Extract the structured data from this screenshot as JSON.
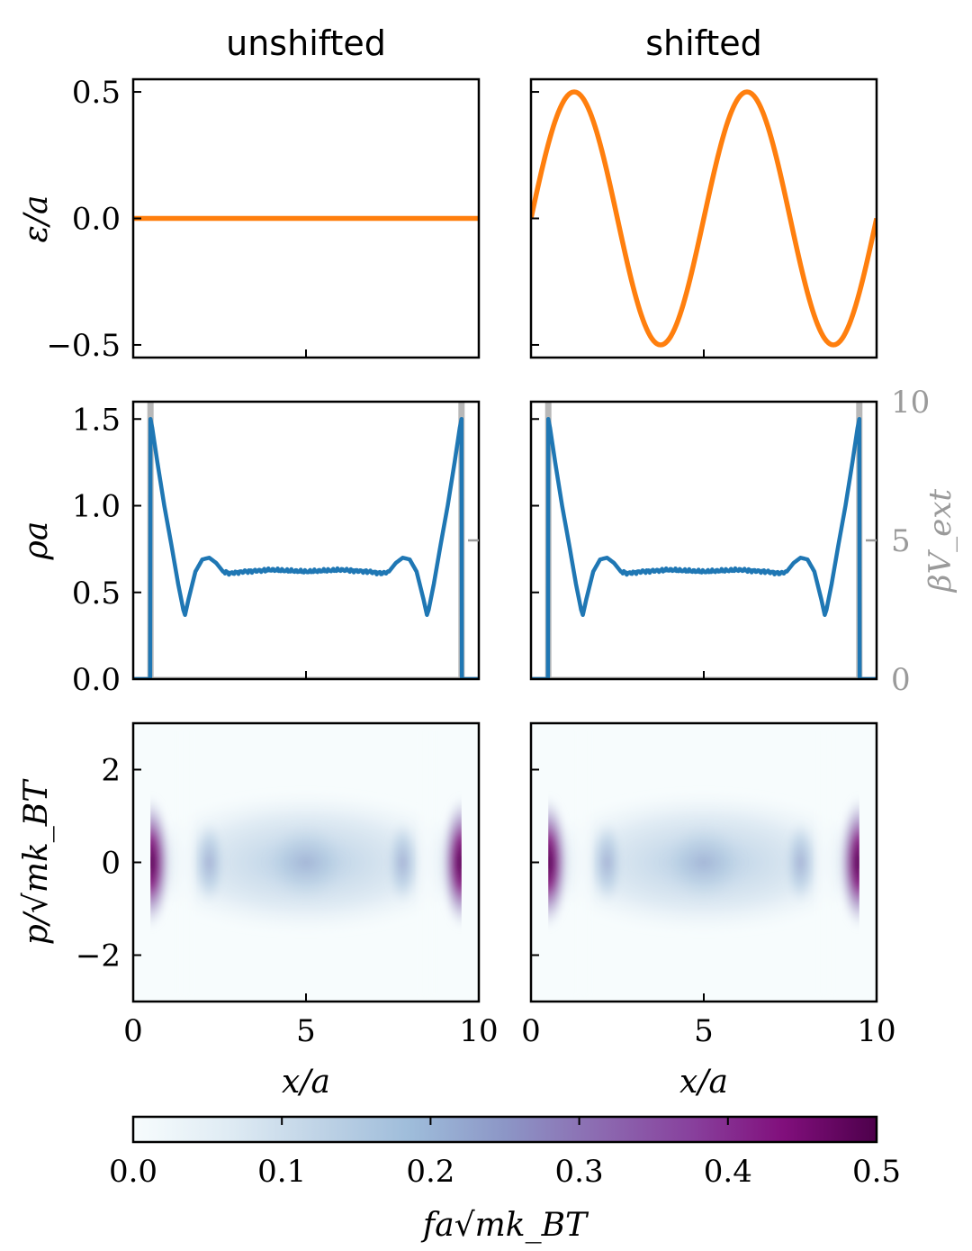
{
  "chart_data": [
    {
      "id": "eps_unshifted",
      "type": "line",
      "title": "unshifted",
      "ylabel": "ε/a",
      "xlim": [
        0,
        10
      ],
      "ylim": [
        -0.55,
        0.55
      ],
      "yticks": [
        0.5,
        0.0,
        -0.5
      ],
      "ytick_labels": [
        "0.5",
        "0.0",
        "−0.5"
      ],
      "series": [
        {
          "x": [
            0,
            2,
            4,
            6,
            8,
            10
          ],
          "y": [
            0,
            0,
            0,
            0,
            0,
            0
          ],
          "color": "#ff7f0e"
        }
      ]
    },
    {
      "id": "eps_shifted",
      "type": "line",
      "title": "shifted",
      "xlim": [
        0,
        10
      ],
      "ylim": [
        -0.55,
        0.55
      ],
      "series": [
        {
          "function": "0.5*sin(2*pi*x/5)",
          "x": [
            0,
            1.25,
            2.5,
            3.75,
            5,
            6.25,
            7.5,
            8.75,
            10
          ],
          "y": [
            0,
            0.5,
            0,
            -0.5,
            0,
            0.5,
            0,
            -0.5,
            0
          ],
          "color": "#ff7f0e"
        }
      ]
    },
    {
      "id": "rho_unshifted",
      "type": "line",
      "ylabel": "ρa",
      "xlim": [
        0,
        10
      ],
      "ylim": [
        0,
        1.6
      ],
      "yticks": [
        0.0,
        0.5,
        1.0,
        1.5
      ],
      "ytick_labels": [
        "0.0",
        "0.5",
        "1.0",
        "1.5"
      ],
      "series": [
        {
          "name": "ρa",
          "color": "#1f77b4",
          "x": [
            0.0,
            0.49,
            0.5,
            0.55,
            0.7,
            0.9,
            1.1,
            1.3,
            1.45,
            1.5,
            1.6,
            1.8,
            2.0,
            2.2,
            2.4,
            2.6,
            2.8,
            3.2,
            4,
            5,
            6,
            6.8,
            7.2,
            7.4,
            7.6,
            7.8,
            8.0,
            8.2,
            8.4,
            8.5,
            8.55,
            8.7,
            8.9,
            9.1,
            9.3,
            9.45,
            9.5,
            9.51,
            10.0
          ],
          "y": [
            0.0,
            0.0,
            1.5,
            1.45,
            1.25,
            1.0,
            0.78,
            0.55,
            0.4,
            0.37,
            0.46,
            0.62,
            0.69,
            0.7,
            0.67,
            0.62,
            0.61,
            0.62,
            0.63,
            0.62,
            0.63,
            0.62,
            0.61,
            0.62,
            0.67,
            0.7,
            0.69,
            0.62,
            0.46,
            0.37,
            0.4,
            0.55,
            0.78,
            1.0,
            1.25,
            1.45,
            1.5,
            0.0,
            0.0
          ]
        },
        {
          "name": "βV_ext",
          "axis": "right",
          "color": "#b8b8b8",
          "x": [
            0.5,
            9.5
          ],
          "y": [
            10,
            10
          ]
        }
      ]
    },
    {
      "id": "rho_shifted",
      "type": "line",
      "xlim": [
        0,
        10
      ],
      "ylim": [
        0,
        1.6
      ],
      "y2label": "βV_ext",
      "y2lim": [
        0,
        10
      ],
      "y2ticks": [
        0,
        5,
        10
      ],
      "y2tick_labels": [
        "0",
        "5",
        "10"
      ],
      "series": [
        {
          "name": "ρa",
          "color": "#1f77b4",
          "x": [
            0.0,
            0.49,
            0.5,
            0.55,
            0.7,
            0.9,
            1.1,
            1.3,
            1.45,
            1.5,
            1.6,
            1.8,
            2.0,
            2.2,
            2.4,
            2.6,
            2.8,
            3.2,
            4,
            5,
            6,
            6.8,
            7.2,
            7.4,
            7.6,
            7.8,
            8.0,
            8.2,
            8.4,
            8.5,
            8.55,
            8.7,
            8.9,
            9.1,
            9.3,
            9.45,
            9.5,
            9.51,
            10.0
          ],
          "y": [
            0.0,
            0.0,
            1.5,
            1.45,
            1.25,
            1.0,
            0.78,
            0.55,
            0.4,
            0.37,
            0.46,
            0.62,
            0.69,
            0.7,
            0.67,
            0.62,
            0.61,
            0.62,
            0.63,
            0.62,
            0.63,
            0.62,
            0.61,
            0.62,
            0.67,
            0.7,
            0.69,
            0.62,
            0.46,
            0.37,
            0.4,
            0.55,
            0.78,
            1.0,
            1.25,
            1.45,
            1.5,
            0.0,
            0.0
          ]
        },
        {
          "name": "βV_ext",
          "axis": "right",
          "color": "#b8b8b8",
          "x": [
            0.5,
            9.5
          ],
          "y": [
            10,
            10
          ]
        }
      ]
    },
    {
      "id": "f_unshifted",
      "type": "heatmap",
      "ylabel": "p/√mk_BT",
      "xlabel": "x/a",
      "xlim": [
        0,
        10
      ],
      "ylim": [
        -3,
        3
      ],
      "xticks": [
        0,
        5,
        10
      ],
      "xtick_labels": [
        "0",
        "5",
        "10"
      ],
      "yticks": [
        2,
        0,
        -2
      ],
      "ytick_labels": [
        "2",
        "0",
        "−2"
      ],
      "colormap": "BuPu",
      "clim": [
        0,
        0.5
      ],
      "peaks": [
        {
          "x": 0.5,
          "p": 0,
          "value": 0.5
        },
        {
          "x": 9.5,
          "p": 0,
          "value": 0.5
        },
        {
          "x": 2.2,
          "p": 0,
          "value": 0.3
        },
        {
          "x": 7.8,
          "p": 0,
          "value": 0.3
        },
        {
          "x": 5.0,
          "p": 0,
          "value": 0.25
        }
      ]
    },
    {
      "id": "f_shifted",
      "type": "heatmap",
      "xlabel": "x/a",
      "xlim": [
        0,
        10
      ],
      "ylim": [
        -3,
        3
      ],
      "xticks": [
        0,
        5,
        10
      ],
      "xtick_labels": [
        "0",
        "5",
        "10"
      ],
      "colormap": "BuPu",
      "clim": [
        0,
        0.5
      ],
      "peaks": [
        {
          "x": 0.5,
          "p": 0,
          "value": 0.5
        },
        {
          "x": 9.5,
          "p": 0,
          "value": 0.5
        },
        {
          "x": 2.2,
          "p": 0,
          "value": 0.3
        },
        {
          "x": 7.8,
          "p": 0,
          "value": 0.3
        },
        {
          "x": 5.0,
          "p": 0,
          "value": 0.25
        }
      ]
    }
  ],
  "colorbar": {
    "label": "fa√mk_BT",
    "range": [
      0,
      0.5
    ],
    "ticks": [
      0.0,
      0.1,
      0.2,
      0.3,
      0.4,
      0.5
    ],
    "tick_labels": [
      "0.0",
      "0.1",
      "0.2",
      "0.3",
      "0.4",
      "0.5"
    ],
    "colors": [
      "#f7fcfd",
      "#e0ecf4",
      "#bfd3e6",
      "#9ebcda",
      "#8c96c6",
      "#8c6bb1",
      "#88419d",
      "#810f7c",
      "#4d004b"
    ]
  }
}
